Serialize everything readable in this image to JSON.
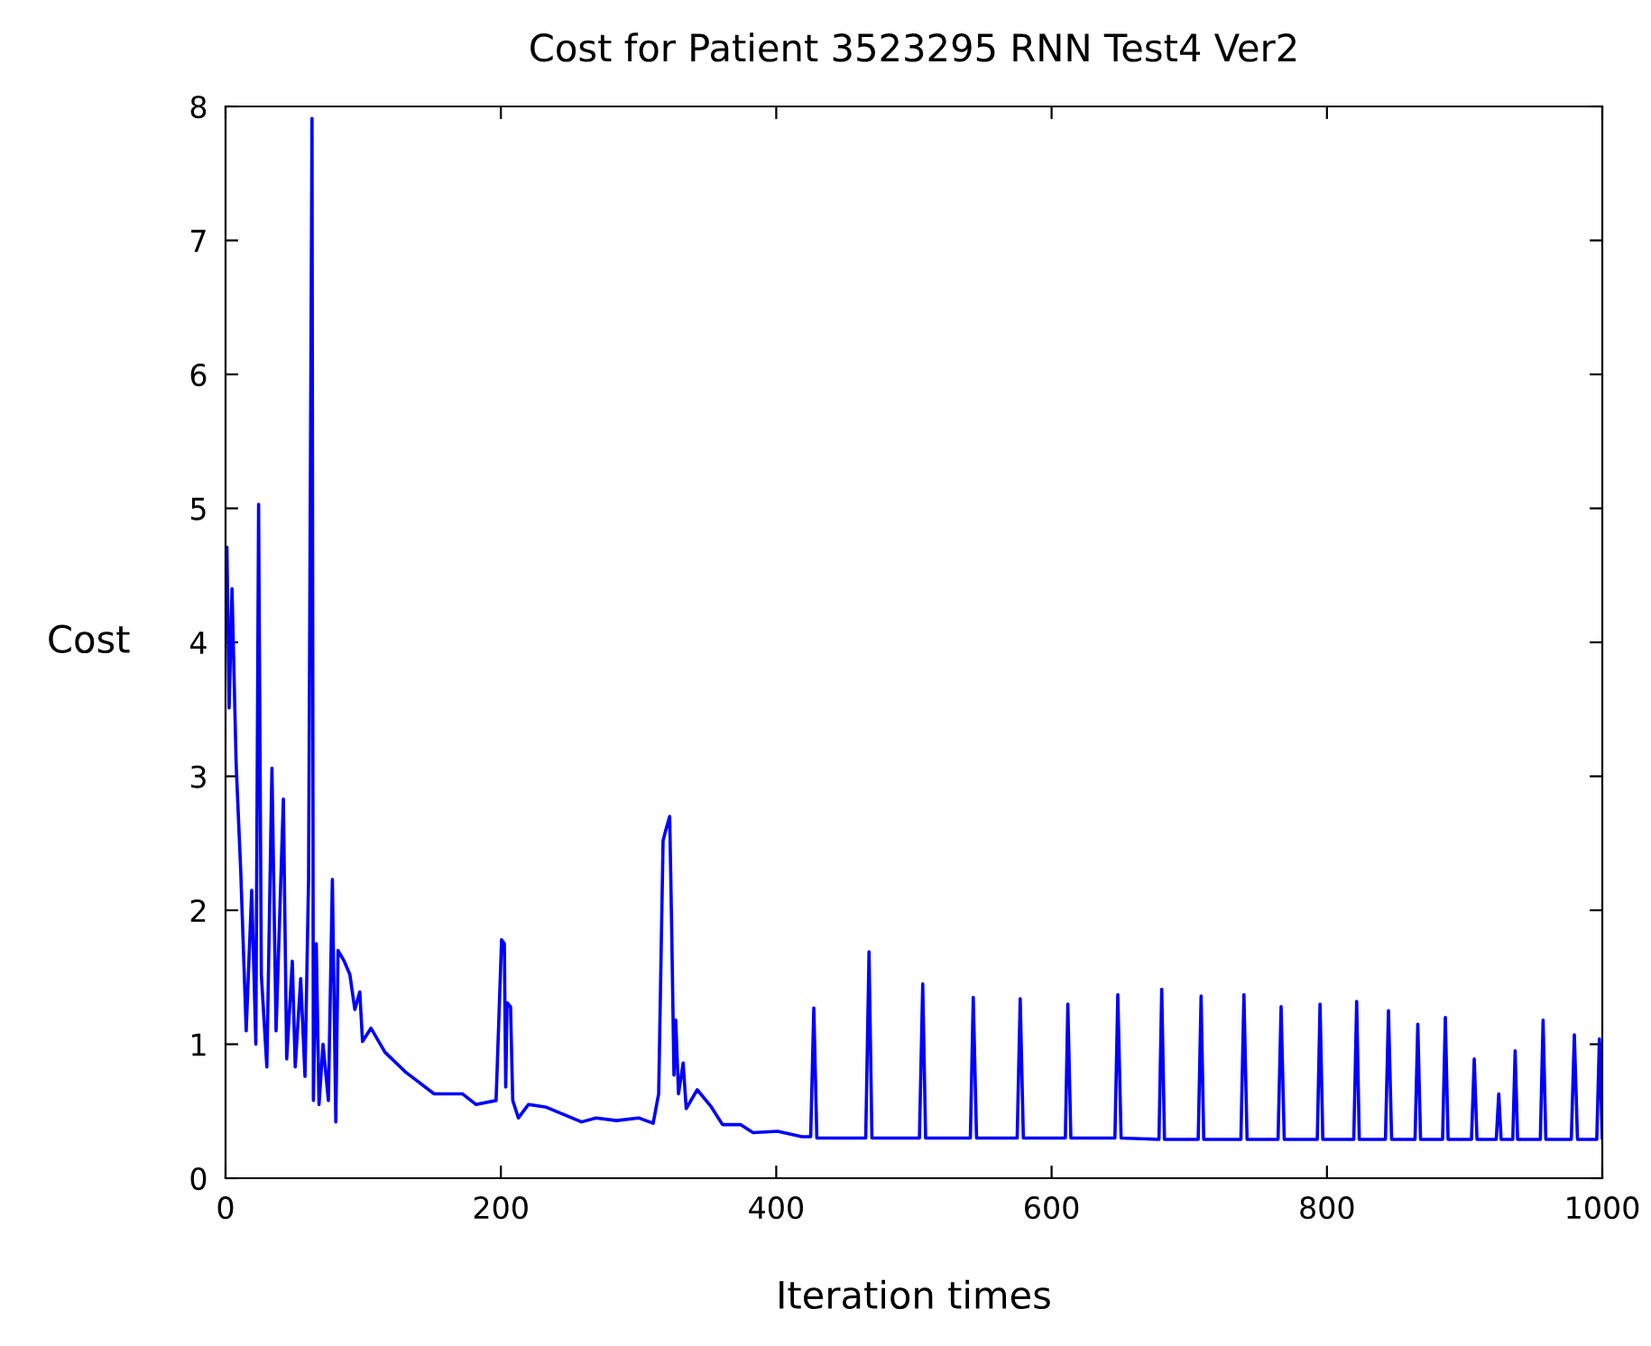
{
  "chart_data": {
    "type": "line",
    "title": "Cost for Patient 3523295 RNN Test4 Ver2",
    "xlabel": "Iteration times",
    "ylabel": "Cost",
    "xlim": [
      0,
      1000
    ],
    "xticks": [
      0,
      200,
      400,
      600,
      800,
      1000
    ],
    "ylim": [
      0,
      8
    ],
    "yticks": [
      0,
      1,
      2,
      3,
      4,
      5,
      6,
      7,
      8
    ],
    "grid": false,
    "legend": false,
    "marker": "none",
    "line_style": "solid",
    "series": [
      {
        "color": "#0000ff",
        "x": [
          0,
          1,
          2.6,
          4.7,
          7.7,
          11,
          15,
          19,
          22,
          24,
          26,
          30,
          33.7,
          36.7,
          42,
          44.4,
          48.5,
          50.6,
          54.6,
          57.7,
          60.3,
          62.8,
          63.8,
          65.9,
          67.9,
          70.8,
          74.7,
          77.6,
          80.1,
          81.7,
          86.2,
          90.3,
          93.9,
          97.5,
          99.5,
          105.6,
          115.8,
          131,
          151.5,
          172,
          182,
          196.5,
          200.5,
          202.5,
          203.5,
          204.5,
          207,
          208.6,
          212.7,
          220,
          233,
          258.6,
          269,
          284,
          300,
          310.6,
          314.6,
          317.8,
          319.8,
          322.6,
          324,
          325.7,
          327,
          329,
          332.4,
          334.6,
          342.6,
          352.3,
          361,
          374,
          383.2,
          401,
          418.7,
          425,
          427.3,
          429.5,
          465,
          467.4,
          469.5,
          504,
          506.4,
          508.5,
          541,
          543.1,
          545.5,
          575,
          577.2,
          579.5,
          610,
          611.8,
          614,
          646,
          648.1,
          650.5,
          678,
          680,
          682,
          706.5,
          708.6,
          710.5,
          737.5,
          739.7,
          742,
          764.5,
          766.7,
          769,
          793,
          795,
          797,
          819.5,
          821.6,
          823.5,
          842.5,
          844.7,
          847,
          864,
          866,
          868,
          884,
          886,
          888,
          905,
          907,
          909,
          923,
          924.8,
          926.5,
          935,
          936.7,
          938.5,
          955,
          957,
          959,
          977.5,
          979.7,
          982,
          996,
          997.9,
          1000
        ],
        "values": [
          4.2,
          4.71,
          3.51,
          4.4,
          3.09,
          2.3,
          1.1,
          2.15,
          1.0,
          5.03,
          1.52,
          0.83,
          3.06,
          1.1,
          2.83,
          0.89,
          1.62,
          0.83,
          1.49,
          0.76,
          2.23,
          7.91,
          0.58,
          1.75,
          0.55,
          1.0,
          0.58,
          2.23,
          0.42,
          1.7,
          1.62,
          1.52,
          1.26,
          1.39,
          1.02,
          1.12,
          0.94,
          0.79,
          0.63,
          0.63,
          0.55,
          0.58,
          1.78,
          1.75,
          0.68,
          1.31,
          1.28,
          0.58,
          0.45,
          0.55,
          0.53,
          0.42,
          0.45,
          0.43,
          0.45,
          0.41,
          0.63,
          2.52,
          2.6,
          2.7,
          1.9,
          0.77,
          1.18,
          0.63,
          0.86,
          0.52,
          0.66,
          0.54,
          0.4,
          0.4,
          0.34,
          0.35,
          0.31,
          0.31,
          1.27,
          0.3,
          0.3,
          1.69,
          0.3,
          0.3,
          1.45,
          0.3,
          0.3,
          1.35,
          0.3,
          0.3,
          1.34,
          0.3,
          0.3,
          1.3,
          0.3,
          0.3,
          1.37,
          0.3,
          0.29,
          1.41,
          0.29,
          0.29,
          1.36,
          0.29,
          0.29,
          1.37,
          0.29,
          0.29,
          1.28,
          0.29,
          0.29,
          1.3,
          0.29,
          0.29,
          1.32,
          0.29,
          0.29,
          1.25,
          0.29,
          0.29,
          1.15,
          0.29,
          0.29,
          1.2,
          0.29,
          0.29,
          0.89,
          0.29,
          0.29,
          0.63,
          0.29,
          0.29,
          0.95,
          0.29,
          0.29,
          1.18,
          0.29,
          0.29,
          1.07,
          0.29,
          0.29,
          1.04,
          0.3
        ]
      }
    ]
  }
}
